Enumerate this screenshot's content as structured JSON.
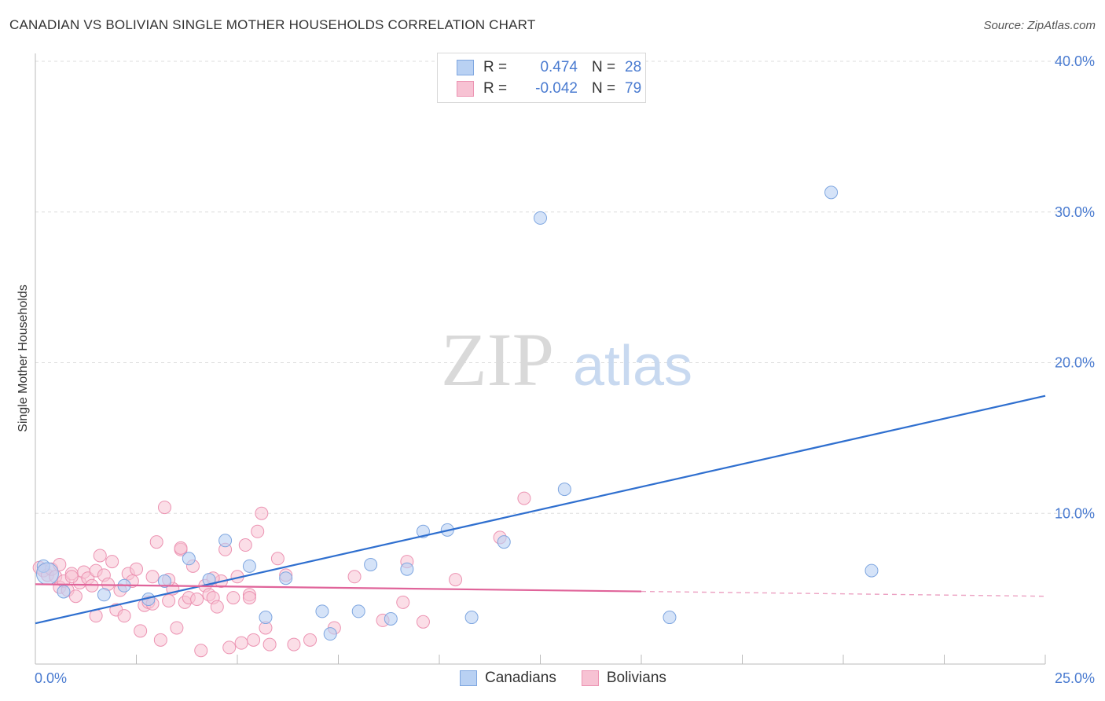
{
  "title": "CANADIAN VS BOLIVIAN SINGLE MOTHER HOUSEHOLDS CORRELATION CHART",
  "source": "Source: ZipAtlas.com",
  "watermark": {
    "part1": "ZIP",
    "part2": "atlas"
  },
  "colors": {
    "canadians_fill": "#b9d1f3",
    "canadians_stroke": "#7ea6e0",
    "canadians_line": "#2f6fcf",
    "bolivians_fill": "#f7c2d3",
    "bolivians_stroke": "#ec93b2",
    "bolivians_line": "#e0649a",
    "tick_text": "#4a7bd0",
    "grid": "#dddddd"
  },
  "legend": {
    "rows": [
      {
        "r_label": "R =",
        "r_value": "0.474",
        "n_label": "N =",
        "n_value": "28"
      },
      {
        "r_label": "R =",
        "r_value": "-0.042",
        "n_label": "N =",
        "n_value": "79"
      }
    ]
  },
  "bottom_legend": {
    "canadians": "Canadians",
    "bolivians": "Bolivians"
  },
  "chart_data": {
    "type": "scatter",
    "title": "CANADIAN VS BOLIVIAN SINGLE MOTHER HOUSEHOLDS CORRELATION CHART",
    "xlabel": "",
    "ylabel": "Single Mother Households",
    "xlim": [
      0,
      25
    ],
    "ylim": [
      0,
      40
    ],
    "x_tick_labels": [
      "0.0%",
      "25.0%"
    ],
    "y_ticks": [
      10,
      20,
      30,
      40
    ],
    "y_tick_labels": [
      "10.0%",
      "20.0%",
      "30.0%",
      "40.0%"
    ],
    "series": [
      {
        "name": "Canadians",
        "r": 0.474,
        "n": 28,
        "trend": {
          "x": [
            0,
            25
          ],
          "y": [
            2.7,
            17.8
          ],
          "dashed_from": null
        },
        "points": [
          [
            0.2,
            6.5
          ],
          [
            0.7,
            4.8
          ],
          [
            1.7,
            4.6
          ],
          [
            2.2,
            5.2
          ],
          [
            2.8,
            4.3
          ],
          [
            3.2,
            5.5
          ],
          [
            3.8,
            7.0
          ],
          [
            4.3,
            5.6
          ],
          [
            4.7,
            8.2
          ],
          [
            5.3,
            6.5
          ],
          [
            5.7,
            3.1
          ],
          [
            6.2,
            5.7
          ],
          [
            7.1,
            3.5
          ],
          [
            7.3,
            2.0
          ],
          [
            8.0,
            3.5
          ],
          [
            8.3,
            6.6
          ],
          [
            8.8,
            3.0
          ],
          [
            9.2,
            6.3
          ],
          [
            9.6,
            8.8
          ],
          [
            10.2,
            8.9
          ],
          [
            10.8,
            3.1
          ],
          [
            11.6,
            8.1
          ],
          [
            12.5,
            29.6
          ],
          [
            13.1,
            11.6
          ],
          [
            15.7,
            3.1
          ],
          [
            19.7,
            31.3
          ],
          [
            20.7,
            6.2
          ],
          [
            0.3,
            6.0
          ]
        ]
      },
      {
        "name": "Bolivians",
        "r": -0.042,
        "n": 79,
        "trend": {
          "x": [
            0,
            25
          ],
          "y": [
            5.3,
            4.5
          ],
          "dashed_from": 15.0
        },
        "points": [
          [
            0.1,
            6.4
          ],
          [
            0.2,
            6.2
          ],
          [
            0.3,
            5.9
          ],
          [
            0.4,
            6.3
          ],
          [
            0.5,
            5.8
          ],
          [
            0.6,
            6.6
          ],
          [
            0.6,
            5.1
          ],
          [
            0.7,
            5.5
          ],
          [
            0.8,
            4.9
          ],
          [
            0.9,
            6.0
          ],
          [
            1.0,
            4.5
          ],
          [
            1.1,
            5.4
          ],
          [
            1.2,
            6.1
          ],
          [
            1.3,
            5.7
          ],
          [
            1.4,
            5.2
          ],
          [
            1.5,
            6.2
          ],
          [
            1.6,
            7.2
          ],
          [
            1.7,
            5.9
          ],
          [
            1.8,
            5.3
          ],
          [
            1.9,
            6.8
          ],
          [
            2.0,
            3.6
          ],
          [
            2.1,
            4.9
          ],
          [
            2.2,
            3.2
          ],
          [
            2.3,
            6.0
          ],
          [
            2.4,
            5.5
          ],
          [
            2.5,
            6.3
          ],
          [
            2.6,
            2.2
          ],
          [
            2.7,
            3.9
          ],
          [
            2.8,
            4.1
          ],
          [
            2.9,
            5.8
          ],
          [
            3.0,
            8.1
          ],
          [
            3.1,
            1.6
          ],
          [
            3.2,
            10.4
          ],
          [
            3.3,
            4.2
          ],
          [
            3.4,
            5.0
          ],
          [
            3.5,
            2.4
          ],
          [
            3.6,
            7.6
          ],
          [
            3.7,
            4.1
          ],
          [
            3.8,
            4.4
          ],
          [
            3.9,
            6.5
          ],
          [
            4.0,
            4.3
          ],
          [
            4.1,
            0.9
          ],
          [
            4.2,
            5.2
          ],
          [
            4.3,
            4.6
          ],
          [
            4.4,
            4.4
          ],
          [
            4.5,
            3.8
          ],
          [
            4.6,
            5.5
          ],
          [
            4.7,
            7.6
          ],
          [
            4.8,
            1.1
          ],
          [
            4.9,
            4.4
          ],
          [
            5.0,
            5.8
          ],
          [
            5.1,
            1.4
          ],
          [
            5.2,
            7.9
          ],
          [
            5.3,
            4.6
          ],
          [
            5.4,
            1.6
          ],
          [
            5.5,
            8.8
          ],
          [
            5.6,
            10.0
          ],
          [
            5.7,
            2.4
          ],
          [
            5.8,
            1.3
          ],
          [
            6.0,
            7.0
          ],
          [
            6.2,
            5.9
          ],
          [
            6.4,
            1.3
          ],
          [
            6.8,
            1.6
          ],
          [
            7.4,
            2.4
          ],
          [
            7.9,
            5.8
          ],
          [
            8.6,
            2.9
          ],
          [
            9.1,
            4.1
          ],
          [
            9.2,
            6.8
          ],
          [
            9.6,
            2.8
          ],
          [
            10.4,
            5.6
          ],
          [
            11.5,
            8.4
          ],
          [
            12.1,
            11.0
          ],
          [
            1.5,
            3.2
          ],
          [
            2.9,
            4.0
          ],
          [
            3.3,
            5.6
          ],
          [
            3.6,
            7.7
          ],
          [
            4.4,
            5.7
          ],
          [
            5.3,
            4.4
          ],
          [
            0.9,
            5.8
          ]
        ]
      }
    ]
  }
}
